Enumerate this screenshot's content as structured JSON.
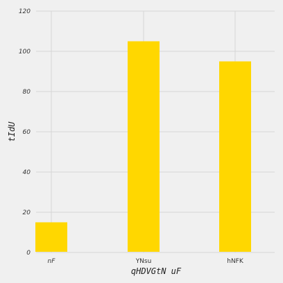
{
  "chart_data": {
    "type": "bar",
    "categories": [
      "nF",
      "YNsu",
      "hNFK"
    ],
    "category_italic": [
      true,
      false,
      false
    ],
    "values": [
      15,
      105,
      95
    ],
    "xlabel": "qHDVGtN uF",
    "ylabel": "tIdU",
    "ylim": [
      0,
      120
    ],
    "yticks": [
      0,
      20,
      40,
      60,
      80,
      100,
      120
    ],
    "grid": true,
    "bar_color": "#ffd700",
    "grid_color": "#d6d6d6",
    "background_color": "#f0f0f0"
  }
}
